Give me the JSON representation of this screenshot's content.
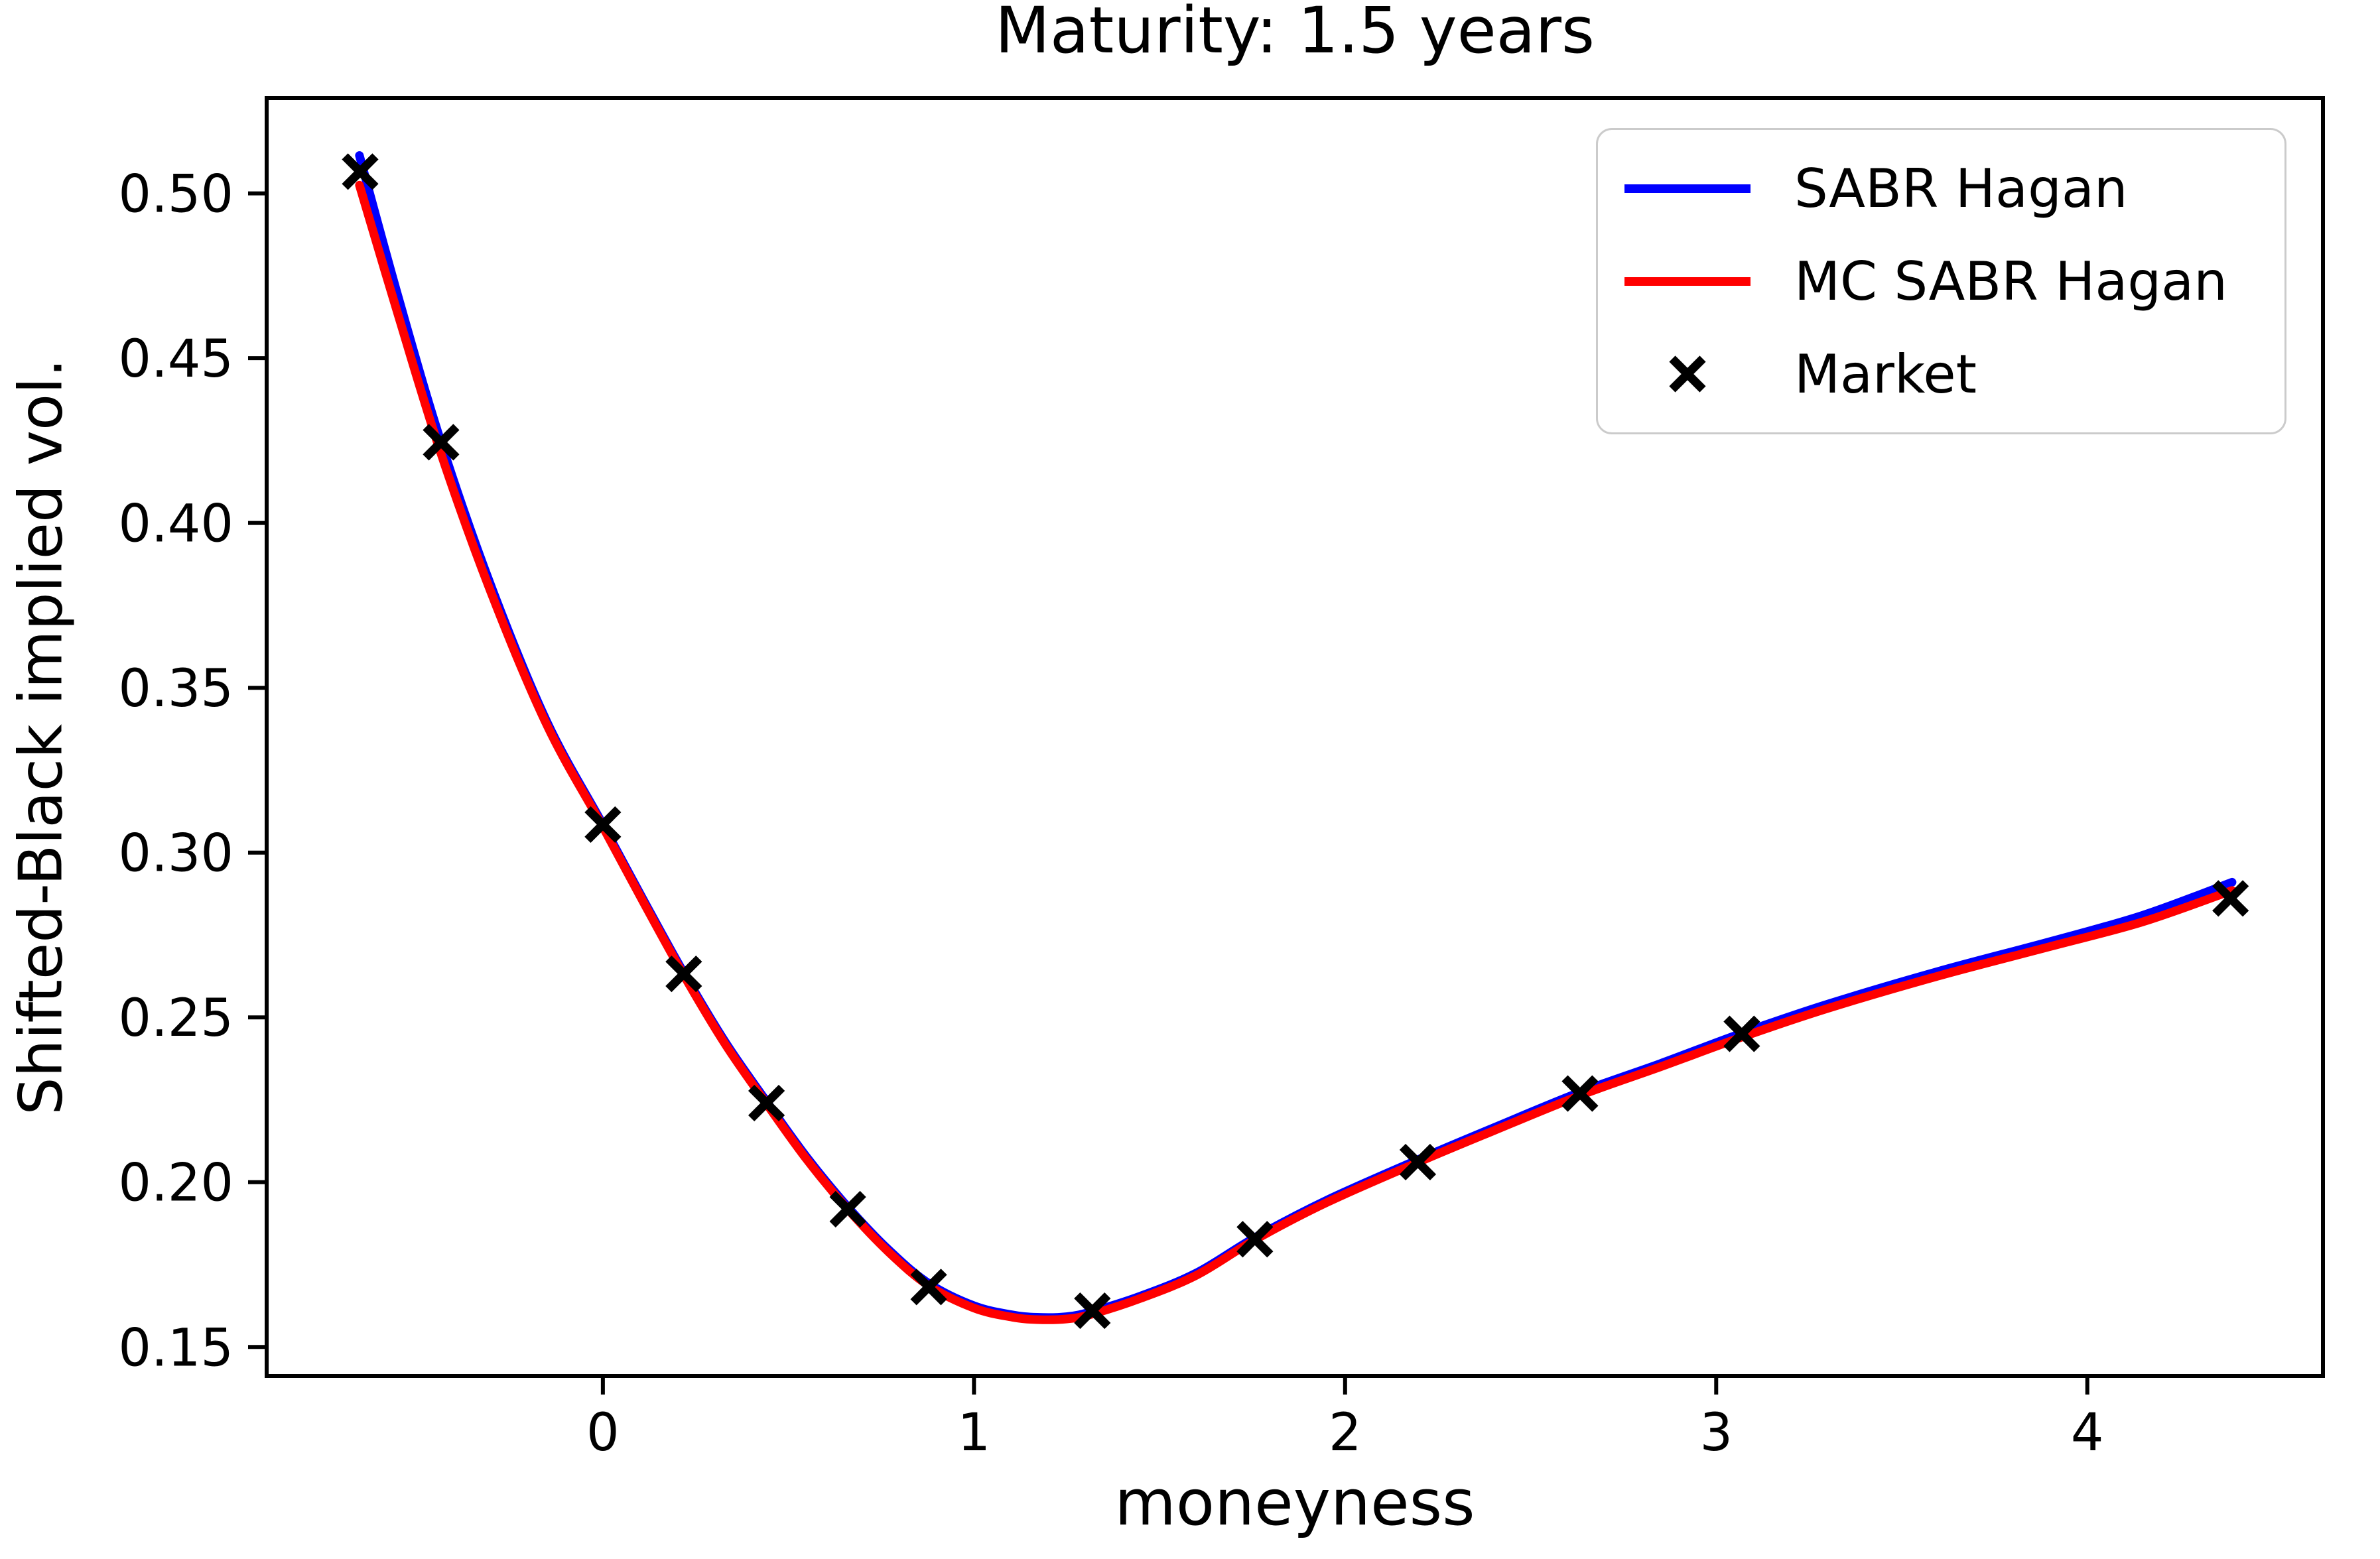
{
  "chart_data": {
    "type": "line",
    "title": "Maturity: 1.5 years",
    "xlabel": "moneyness",
    "ylabel": "Shifted-Black implied vol.",
    "xlim": [
      -0.906,
      4.635
    ],
    "ylim": [
      0.1412,
      0.5289
    ],
    "x_ticks": [
      0,
      1,
      2,
      3,
      4
    ],
    "y_ticks": [
      0.15,
      0.2,
      0.25,
      0.3,
      0.35,
      0.4,
      0.45,
      0.5
    ],
    "grid": false,
    "legend_position": "upper right",
    "series": [
      {
        "name": "SABR Hagan",
        "type": "line",
        "color": "#0000ff",
        "x": [
          -0.656,
          -0.55,
          -0.436,
          -0.3,
          -0.15,
          0.0,
          0.11,
          0.218,
          0.33,
          0.441,
          0.55,
          0.66,
          0.77,
          0.878,
          1.0,
          1.1,
          1.17,
          1.25,
          1.319,
          1.45,
          1.6,
          1.757,
          1.95,
          2.196,
          2.4,
          2.633,
          2.85,
          3.069,
          3.3,
          3.6,
          3.9,
          4.15,
          4.39
        ],
        "y": [
          0.5115,
          0.468,
          0.4245,
          0.3805,
          0.3395,
          0.3085,
          0.2855,
          0.2635,
          0.2425,
          0.2245,
          0.2075,
          0.1925,
          0.1795,
          0.1693,
          0.1625,
          0.1598,
          0.159,
          0.1592,
          0.1608,
          0.1655,
          0.1725,
          0.1832,
          0.1945,
          0.2068,
          0.2165,
          0.2273,
          0.236,
          0.2452,
          0.254,
          0.264,
          0.273,
          0.281,
          0.291
        ]
      },
      {
        "name": "MC SABR Hagan",
        "type": "line",
        "color": "#ff0000",
        "x": [
          -0.656,
          -0.55,
          -0.436,
          -0.3,
          -0.15,
          0.0,
          0.11,
          0.218,
          0.33,
          0.441,
          0.55,
          0.66,
          0.77,
          0.878,
          1.0,
          1.1,
          1.17,
          1.25,
          1.319,
          1.45,
          1.6,
          1.757,
          1.95,
          2.196,
          2.4,
          2.633,
          2.85,
          3.069,
          3.3,
          3.6,
          3.9,
          4.15,
          4.39
        ],
        "y": [
          0.5025,
          0.4625,
          0.421,
          0.3785,
          0.3385,
          0.3078,
          0.2848,
          0.2628,
          0.2418,
          0.2238,
          0.2068,
          0.1918,
          0.1788,
          0.1686,
          0.1618,
          0.1591,
          0.1583,
          0.1585,
          0.16,
          0.1648,
          0.1718,
          0.1825,
          0.1938,
          0.206,
          0.2156,
          0.2263,
          0.235,
          0.244,
          0.2527,
          0.2626,
          0.2715,
          0.279,
          0.2885
        ]
      },
      {
        "name": "Market",
        "type": "scatter-x",
        "color": "#000000",
        "x": [
          -0.654,
          -0.436,
          0.0,
          0.218,
          0.441,
          0.66,
          0.878,
          1.319,
          1.757,
          2.196,
          2.633,
          3.069,
          4.386
        ],
        "y": [
          0.5066,
          0.4245,
          0.3085,
          0.2632,
          0.224,
          0.1918,
          0.1682,
          0.161,
          0.1827,
          0.2061,
          0.2269,
          0.245,
          0.2861
        ]
      }
    ]
  }
}
